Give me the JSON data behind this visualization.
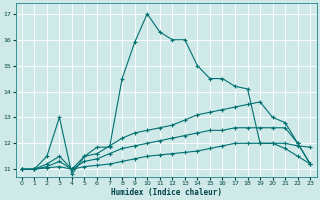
{
  "xlabel": "Humidex (Indice chaleur)",
  "bg_color": "#cfe8e8",
  "grid_color": "#b0d0d0",
  "line_color": "#007070",
  "xlim": [
    -0.5,
    23.5
  ],
  "ylim": [
    10.7,
    17.4
  ],
  "yticks": [
    11,
    12,
    13,
    14,
    15,
    16,
    17
  ],
  "xticks": [
    0,
    1,
    2,
    3,
    4,
    5,
    6,
    7,
    8,
    9,
    10,
    11,
    12,
    13,
    14,
    15,
    16,
    17,
    18,
    19,
    20,
    21,
    22,
    23
  ],
  "line1_x": [
    0,
    1,
    2,
    3,
    4,
    5,
    6,
    7,
    8,
    9,
    10,
    11,
    12,
    13,
    14,
    15,
    16,
    17,
    18,
    19,
    20,
    21,
    22,
    23
  ],
  "line1_y": [
    11.0,
    11.0,
    11.5,
    13.0,
    10.8,
    11.5,
    11.85,
    11.85,
    14.5,
    15.9,
    17.0,
    16.3,
    16.0,
    16.0,
    15.0,
    14.5,
    14.5,
    14.2,
    14.1,
    12.0,
    12.0,
    12.0,
    11.9,
    11.85
  ],
  "line2_x": [
    0,
    1,
    2,
    3,
    4,
    5,
    6,
    7,
    8,
    9,
    10,
    11,
    12,
    13,
    14,
    15,
    16,
    17,
    18,
    19,
    20,
    21,
    22,
    23
  ],
  "line2_y": [
    11.0,
    11.0,
    11.2,
    11.5,
    11.0,
    11.5,
    11.6,
    11.9,
    12.2,
    12.4,
    12.5,
    12.6,
    12.7,
    12.9,
    13.1,
    13.2,
    13.3,
    13.4,
    13.5,
    13.6,
    13.0,
    12.8,
    12.0,
    11.2
  ],
  "line3_x": [
    0,
    1,
    2,
    3,
    4,
    5,
    6,
    7,
    8,
    9,
    10,
    11,
    12,
    13,
    14,
    15,
    16,
    17,
    18,
    19,
    20,
    21,
    22,
    23
  ],
  "line3_y": [
    11.0,
    11.0,
    11.1,
    11.3,
    11.0,
    11.3,
    11.4,
    11.6,
    11.8,
    11.9,
    12.0,
    12.1,
    12.2,
    12.3,
    12.4,
    12.5,
    12.5,
    12.6,
    12.6,
    12.6,
    12.6,
    12.6,
    12.0,
    11.2
  ],
  "line4_x": [
    0,
    1,
    2,
    3,
    4,
    5,
    6,
    7,
    8,
    9,
    10,
    11,
    12,
    13,
    14,
    15,
    16,
    17,
    18,
    19,
    20,
    21,
    22,
    23
  ],
  "line4_y": [
    11.0,
    11.0,
    11.05,
    11.1,
    11.0,
    11.1,
    11.15,
    11.2,
    11.3,
    11.4,
    11.5,
    11.55,
    11.6,
    11.65,
    11.7,
    11.8,
    11.9,
    12.0,
    12.0,
    12.0,
    12.0,
    11.8,
    11.5,
    11.2
  ]
}
